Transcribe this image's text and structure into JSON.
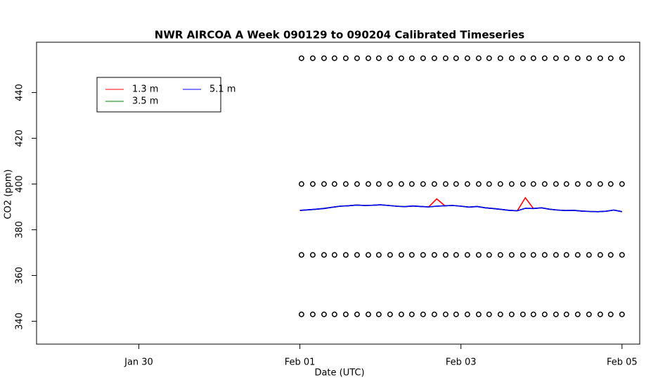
{
  "chart_data": {
    "type": "line",
    "title": "NWR AIRCOA A  Week 090129 to 090204  Calibrated Timeseries",
    "xlabel": "Date (UTC)",
    "ylabel": "CO2 (ppm)",
    "xlim": [
      -0.27,
      7.22
    ],
    "xticks": [
      {
        "value": 1,
        "label": "Jan 30"
      },
      {
        "value": 3,
        "label": "Feb 01"
      },
      {
        "value": 5,
        "label": "Feb 03"
      },
      {
        "value": 7,
        "label": "Feb 05"
      }
    ],
    "ylim": [
      330,
      462
    ],
    "yticks": [
      340,
      360,
      380,
      400,
      420,
      440
    ],
    "legend": "topleft",
    "x": [
      3.0,
      3.1,
      3.2,
      3.3,
      3.4,
      3.5,
      3.6,
      3.7,
      3.8,
      3.9,
      4.0,
      4.1,
      4.2,
      4.3,
      4.4,
      4.5,
      4.6,
      4.7,
      4.8,
      4.9,
      5.0,
      5.1,
      5.2,
      5.3,
      5.4,
      5.5,
      5.6,
      5.7,
      5.8,
      5.9,
      6.0,
      6.1,
      6.2,
      6.3,
      6.4,
      6.5,
      6.6,
      6.7,
      6.8,
      6.9,
      7.0
    ],
    "series": [
      {
        "name": "1.3 m",
        "color": "#ff0000",
        "values": [
          388.4,
          388.7,
          389.0,
          389.3,
          389.8,
          390.3,
          390.5,
          390.8,
          390.6,
          390.7,
          390.9,
          390.6,
          390.3,
          390.1,
          390.4,
          390.2,
          390.0,
          393.5,
          390.5,
          390.6,
          390.3,
          389.9,
          390.2,
          389.6,
          389.3,
          388.9,
          388.5,
          388.3,
          394.0,
          389.3,
          389.6,
          389.0,
          388.6,
          388.4,
          388.5,
          388.2,
          388.0,
          387.9,
          388.1,
          388.6,
          387.9
        ]
      },
      {
        "name": "3.5 m",
        "color": "#008000",
        "values": [
          388.5,
          388.7,
          389.0,
          389.4,
          389.8,
          390.3,
          390.5,
          390.8,
          390.6,
          390.7,
          390.9,
          390.6,
          390.3,
          390.1,
          390.4,
          390.2,
          390.0,
          390.3,
          390.5,
          390.6,
          390.3,
          389.9,
          390.2,
          389.6,
          389.3,
          388.9,
          388.5,
          388.3,
          389.4,
          389.3,
          389.6,
          389.0,
          388.6,
          388.4,
          388.5,
          388.2,
          388.0,
          387.9,
          388.1,
          388.6,
          387.9
        ]
      },
      {
        "name": "5.1 m",
        "color": "#0000ff",
        "values": [
          388.5,
          388.7,
          389.0,
          389.3,
          389.8,
          390.3,
          390.5,
          390.8,
          390.6,
          390.7,
          390.9,
          390.6,
          390.3,
          390.1,
          390.4,
          390.2,
          390.0,
          390.3,
          390.5,
          390.6,
          390.3,
          389.9,
          390.2,
          389.6,
          389.3,
          388.9,
          388.5,
          388.3,
          389.4,
          389.3,
          389.6,
          389.0,
          388.6,
          388.4,
          388.5,
          388.2,
          388.0,
          387.9,
          388.1,
          388.6,
          387.9
        ]
      }
    ],
    "standards_x": [
      3.02,
      3.16,
      3.3,
      3.43,
      3.57,
      3.71,
      3.85,
      3.98,
      4.12,
      4.26,
      4.39,
      4.53,
      4.67,
      4.81,
      4.94,
      5.08,
      5.22,
      5.35,
      5.49,
      5.63,
      5.77,
      5.9,
      6.04,
      6.18,
      6.31,
      6.45,
      6.59,
      6.73,
      6.86,
      7.0
    ],
    "standards": [
      {
        "color": "#000000",
        "values": [
          455,
          455,
          455,
          455,
          455,
          455,
          455,
          455,
          455,
          455,
          455,
          455,
          455,
          455,
          455,
          455,
          455,
          455,
          455,
          455,
          455,
          455,
          455,
          455,
          455,
          455,
          455,
          455,
          455,
          455
        ]
      },
      {
        "color": "#000000",
        "values": [
          400,
          400,
          400,
          400,
          400,
          400,
          400,
          400,
          400,
          400,
          400,
          400,
          400,
          400,
          400,
          400,
          400,
          400,
          400,
          400,
          400,
          400,
          400,
          400,
          400,
          400,
          400,
          400,
          400,
          400
        ]
      },
      {
        "color": "#000000",
        "values": [
          369,
          369,
          369,
          369,
          369,
          369,
          369,
          369,
          369,
          369,
          369,
          369,
          369,
          369,
          369,
          369,
          369,
          369,
          369,
          369,
          369,
          369,
          369,
          369,
          369,
          369,
          369,
          369,
          369,
          369
        ]
      },
      {
        "color": "#000000",
        "values": [
          343,
          343,
          343,
          343,
          343,
          343,
          343,
          343,
          343,
          343,
          343,
          343,
          343,
          343,
          343,
          343,
          343,
          343,
          343,
          343,
          343,
          343,
          343,
          343,
          343,
          343,
          343,
          343,
          343,
          343
        ]
      }
    ]
  }
}
